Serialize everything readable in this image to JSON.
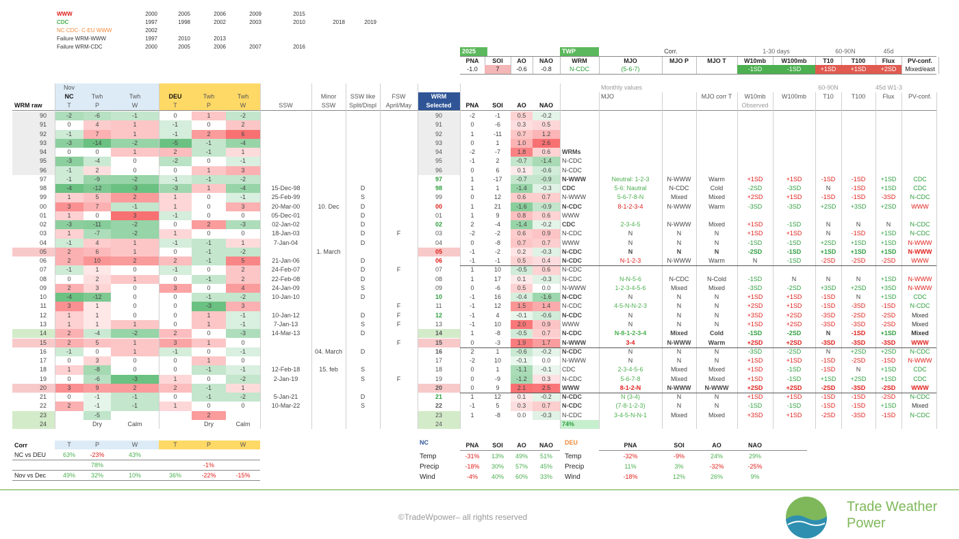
{
  "legend": {
    "rows": [
      {
        "label": "WWW",
        "years": [
          "2000",
          "2005",
          "2006",
          "2009",
          "2015"
        ]
      },
      {
        "label": "CDC",
        "years": [
          "1997",
          "1998",
          "2002",
          "2003",
          "2010",
          "2018",
          "2019"
        ]
      },
      {
        "label": "NC CDC- C-EU WWW",
        "years": [
          "2002"
        ]
      },
      {
        "label": "Failure WRM-WWW",
        "years": [
          "1997",
          "2010",
          "2013"
        ]
      },
      {
        "label": "Failure WRM-CDC",
        "years": [
          "2000",
          "2005",
          "2006",
          "2007",
          "2016"
        ]
      }
    ]
  },
  "forecast": {
    "year": "2025",
    "twp": "TWP",
    "corr": "Corr.",
    "days": "1-30 days",
    "band": "60-90N",
    "flux": "45d",
    "headers": [
      "PNA",
      "SOI",
      "AO",
      "NAO",
      "WRM",
      "MJO",
      "MJO P",
      "MJO T",
      "W10mb",
      "W100mb",
      "T10",
      "T100",
      "Flux",
      "PV-conf."
    ],
    "values": [
      "-1.0",
      "7",
      "-0.6",
      "-0.8",
      "N-CDC",
      "(5-6-7)",
      null,
      null,
      "-1SD",
      "-1SD",
      "+1SD",
      "+1SD",
      "+2SD",
      "Mixed/east"
    ]
  },
  "main": {
    "headers": [
      [
        null,
        "Nov",
        null,
        null,
        null,
        null,
        null,
        null,
        null,
        null,
        null,
        null,
        null,
        null,
        null,
        null,
        null,
        "Monthly values",
        null,
        null,
        null,
        null,
        "60-90N",
        null,
        "45d W1-3",
        null
      ],
      [
        null,
        "NC",
        "Twh",
        "Twh",
        "DEU",
        "Twh",
        "Twh",
        null,
        "Minor",
        "SSW like",
        "FSW",
        "WRM",
        null,
        null,
        null,
        null,
        null,
        "MJO",
        null,
        "MJO corr T",
        "W10mb",
        "W100mb",
        "T10",
        "T100",
        "Flux",
        "PV-conf."
      ],
      [
        "WRM raw",
        "T",
        "P",
        "W",
        "T",
        "P",
        "W",
        "SSW",
        "SSW",
        "Split/Displ",
        "April/May",
        "Selected",
        "PNA",
        "SOI",
        "AO",
        "NAO",
        null,
        null,
        null,
        null,
        "Observed",
        null,
        null,
        null,
        null,
        null
      ]
    ],
    "rows": [
      [
        "90",
        "-2",
        "-6",
        "-1",
        "0",
        "1",
        "-2",
        null,
        null,
        null,
        null,
        "90",
        "-2",
        "-1",
        "0.5",
        "-0.2",
        null,
        null,
        null,
        null,
        null,
        null,
        null,
        null,
        null,
        null
      ],
      [
        "91",
        "0",
        "4",
        "1",
        "-1",
        "0",
        "2",
        null,
        null,
        null,
        null,
        "91",
        "0",
        "-6",
        "0.3",
        "0.5",
        null,
        null,
        null,
        null,
        null,
        null,
        null,
        null,
        null,
        null
      ],
      [
        "92",
        "-1",
        "7",
        "1",
        "-1",
        "2",
        "6",
        null,
        null,
        null,
        null,
        "92",
        "1",
        "-11",
        "0.7",
        "1.2",
        null,
        null,
        null,
        null,
        null,
        null,
        null,
        null,
        null,
        null
      ],
      [
        "93",
        "-3",
        "-14",
        "-2",
        "-5",
        "-1",
        "-4",
        null,
        null,
        null,
        null,
        "93",
        "0",
        "1",
        "1.0",
        "2.6",
        null,
        null,
        null,
        null,
        null,
        null,
        null,
        null,
        null,
        null
      ],
      [
        "94",
        "0",
        "0",
        "1",
        "2",
        "-1",
        "1",
        null,
        null,
        null,
        null,
        "94",
        "-2",
        "-7",
        "1.8",
        "0.6",
        "WRMs",
        null,
        null,
        null,
        null,
        null,
        null,
        null,
        null,
        null
      ],
      [
        "95",
        "-3",
        "-4",
        "0",
        "-2",
        "0",
        "-1",
        null,
        null,
        null,
        null,
        "95",
        "-1",
        "2",
        "-0.7",
        "-1.4",
        "N-CDC",
        null,
        null,
        null,
        null,
        null,
        null,
        null,
        null,
        null
      ],
      [
        "96",
        "-1",
        "2",
        "0",
        "0",
        "1",
        "3",
        null,
        null,
        null,
        null,
        "96",
        "0",
        "6",
        "0.1",
        "-0.6",
        "N-CDC",
        null,
        null,
        null,
        null,
        null,
        null,
        null,
        null,
        null
      ],
      [
        "97",
        "-1",
        "-9",
        "-2",
        "-1",
        "-1",
        "-2",
        null,
        null,
        null,
        null,
        "97",
        "1",
        "-17",
        "-0.7",
        "-0.9",
        "N-WWW",
        "Neutral: 1-2-3",
        "N-WWW",
        "Warm",
        "+1SD",
        "+1SD",
        "-1SD",
        "-1SD",
        "+1SD",
        "CDC"
      ],
      [
        "98",
        "-4",
        "-12",
        "-3",
        "-3",
        "1",
        "-4",
        "15-Dec-98",
        null,
        "D",
        null,
        "98",
        "1",
        "1",
        "-1.4",
        "-0.3",
        "CDC",
        "5-6: Nautral",
        "N-CDC",
        "Cold",
        "-2SD",
        "-3SD",
        "N",
        "-1SD",
        "+1SD",
        "CDC"
      ],
      [
        "99",
        "1",
        "5",
        "2",
        "1",
        "0",
        "-1",
        "25-Feb-99",
        null,
        "S",
        null,
        "99",
        "0",
        "12",
        "0.6",
        "0.7",
        "N-WWW",
        "5-6-7-8-N",
        "Mixed",
        "Mixed",
        "+2SD",
        "+1SD",
        "-1SD",
        "-1SD",
        "-3SD",
        "N-CDC"
      ],
      [
        "00",
        "3",
        "7",
        "-1",
        "1",
        "0",
        "3",
        "20-Mar-00",
        "10. Dec",
        "D",
        null,
        "00",
        "1",
        "21",
        "-1.6",
        "-0.9",
        "N-CDC",
        "8-1-2-3-4",
        "N-WWW",
        "Warm",
        "-3SD",
        "-3SD",
        "+2SD",
        "+3SD",
        "+2SD",
        "WWW"
      ],
      [
        "01",
        "1",
        "0",
        "3",
        "-1",
        "0",
        "0",
        "05-Dec-01",
        null,
        "D",
        null,
        "01",
        "1",
        "9",
        "0.8",
        "0.6",
        "WWW",
        null,
        null,
        null,
        null,
        null,
        null,
        null,
        null,
        null
      ],
      [
        "02",
        "-3",
        "-11",
        "-2",
        "0",
        "2",
        "-3",
        "02-Jan-02",
        null,
        "D",
        null,
        "02",
        "2",
        "-4",
        "-1.4",
        "-0.2",
        "CDC",
        "2-3-4-5",
        "N-WWW",
        "Mixed",
        "+1SD",
        "-1SD",
        "N",
        "N",
        "N",
        "N-CDC"
      ],
      [
        "03",
        "1",
        "-7",
        "-2",
        "1",
        "0",
        "0",
        "18-Jan-03",
        null,
        "D",
        "F",
        "03",
        "-2",
        "-2",
        "0.6",
        "0.9",
        "N-CDC",
        "N",
        "N",
        "N",
        "+1SD",
        "+1SD",
        "N",
        "-1SD",
        "+1SD",
        "N-CDC"
      ],
      [
        "04",
        "-1",
        "4",
        "1",
        "-1",
        "-1",
        "1",
        "7-Jan-04",
        null,
        "D",
        null,
        "04",
        "0",
        "-8",
        "0.7",
        "0.7",
        "WWW",
        "N",
        "N",
        "N",
        "-1SD",
        "-1SD",
        "+2SD",
        "+1SD",
        "+1SD",
        "N-WWW"
      ],
      [
        "05",
        "2",
        "6",
        "1",
        "0",
        "-1",
        "-2",
        null,
        "1. March",
        null,
        null,
        "05",
        "-1",
        "-2",
        "0.2",
        "-0.3",
        "N-CDC",
        "N",
        "N",
        "N",
        "-2SD",
        "-1SD",
        "+1SD",
        "+1SD",
        "+1SD",
        "N-WWW"
      ],
      [
        "06",
        "2",
        "10",
        "2",
        "2",
        "-1",
        "5",
        "21-Jan-06",
        null,
        "D",
        null,
        "06",
        "-1",
        "-1",
        "0.5",
        "0.4",
        "N-CDC",
        "N-1-2-3",
        "N-WWW",
        "Warm",
        "N",
        "-1SD",
        "-2SD",
        "-2SD",
        "-2SD",
        "WWW"
      ],
      [
        "07",
        "-1",
        "1",
        "0",
        "-1",
        "0",
        "2",
        "24-Feb-07",
        null,
        "D",
        "F",
        "07",
        "1",
        "10",
        "-0.5",
        "0.6",
        "N-CDC",
        null,
        null,
        null,
        null,
        null,
        null,
        null,
        null,
        null
      ],
      [
        "08",
        "0",
        "2",
        "1",
        "0",
        "-1",
        "2",
        "22-Feb-08",
        null,
        "D",
        null,
        "08",
        "1",
        "17",
        "0.1",
        "-0.3",
        "N-CDC",
        "N-N-5-6",
        "N-CDC",
        "N-Cold",
        "-1SD",
        "N",
        "N",
        "N",
        "+1SD",
        "N-WWW"
      ],
      [
        "09",
        "2",
        "3",
        "0",
        "3",
        "0",
        "4",
        "24-Jan-09",
        null,
        "S",
        null,
        "09",
        "0",
        "-6",
        "0.5",
        "0.0",
        "N-WWW",
        "1-2-3-4-5-6",
        "Mixed",
        "Mixed",
        "-3SD",
        "-2SD",
        "+3SD",
        "+2SD",
        "+3SD",
        "N-WWW"
      ],
      [
        "10",
        "-4",
        "-12",
        "0",
        "0",
        "-1",
        "-2",
        "10-Jan-10",
        null,
        "D",
        null,
        "10",
        "-1",
        "16",
        "-0.4",
        "-1.6",
        "N-CDC",
        "N",
        "N",
        "N",
        "+1SD",
        "+1SD",
        "-1SD",
        "N",
        "+1SD",
        "CDC"
      ],
      [
        "11",
        "3",
        "1",
        "0",
        "0",
        "-3",
        "3",
        null,
        null,
        null,
        "F",
        "11",
        "-1",
        "12",
        "1.5",
        "1.4",
        "N-CDC",
        "4-5-N-N-2-3",
        "N",
        "N",
        "+2SD",
        "+1SD",
        "-1SD",
        "-3SD",
        "-1SD",
        "N-CDC"
      ],
      [
        "12",
        "1",
        "1",
        "0",
        "0",
        "1",
        "-1",
        "10-Jan-12",
        null,
        "D",
        "F",
        "12",
        "-1",
        "4",
        "-0.1",
        "-0.6",
        "N-CDC",
        "N",
        "N",
        "N",
        "+3SD",
        "+2SD",
        "-3SD",
        "-2SD",
        "-2SD",
        "Mixed"
      ],
      [
        "13",
        "1",
        "1",
        "1",
        "0",
        "1",
        "-1",
        "7-Jan-13",
        null,
        "S",
        "F",
        "13",
        "-1",
        "10",
        "2.0",
        "0.9",
        "WWW",
        "N",
        "N",
        "N",
        "+1SD",
        "+2SD",
        "-3SD",
        "-3SD",
        "-2SD",
        "Mixed"
      ],
      [
        "14",
        "2",
        "-4",
        "-2",
        "2",
        "0",
        "-3",
        "14-Mar-13",
        null,
        "D",
        null,
        "14",
        "1",
        "-8",
        "-0.5",
        "0.7",
        "N-CDC",
        "N-8-1-2-3-4",
        "Mixed",
        "Cold",
        "-1SD",
        "-2SD",
        "N",
        "-1SD",
        "+1SD",
        "Mixed"
      ],
      [
        "15",
        "2",
        "5",
        "1",
        "3",
        "1",
        "0",
        null,
        null,
        null,
        "F",
        "15",
        "0",
        "-3",
        "1.9",
        "1.7",
        "N-WWW",
        "3-4",
        "N-WWW",
        "Warm",
        "+2SD",
        "+2SD",
        "-3SD",
        "-3SD",
        "-3SD",
        "WWW"
      ],
      [
        "16",
        "-1",
        "0",
        "1",
        "-1",
        "0",
        "-1",
        null,
        "04. March",
        "D",
        null,
        "16",
        "2",
        "1",
        "-0.6",
        "-0.2",
        "N-CDC",
        "N",
        "N",
        "N",
        "-3SD",
        "-2SD",
        "N",
        "+2SD",
        "+2SD",
        "N-CDC"
      ],
      [
        "17",
        "0",
        "3",
        "0",
        "0",
        "1",
        "0",
        null,
        null,
        null,
        null,
        "17",
        "-2",
        "10",
        "-0.1",
        "0.0",
        "N-WWW",
        "N",
        "N",
        "N",
        "+1SD",
        "+1SD",
        "-1SD",
        "-2SD",
        "-1SD",
        "N-WWW"
      ],
      [
        "18",
        "1",
        "-8",
        "0",
        "0",
        "-1",
        "-1",
        "12-Feb-18",
        "15. feb",
        "S",
        null,
        "18",
        "0",
        "1",
        "-1.1",
        "-0.1",
        "CDC",
        "2-3-4-5-6",
        "Mixed",
        "Mixed",
        "+1SD",
        "-1SD",
        "-1SD",
        "N",
        "+1SD",
        "CDC"
      ],
      [
        "19",
        "0",
        "-6",
        "-3",
        "1",
        "0",
        "-2",
        "2-Jan-19",
        null,
        "S",
        "F",
        "19",
        "0",
        "-9",
        "-1.2",
        "0.3",
        "N-CDC",
        "5-6-7-8",
        "Mixed",
        "Mixed",
        "+1SD",
        "-1SD",
        "+1SD",
        "+2SD",
        "+1SD",
        "CDC"
      ],
      [
        "20",
        "3",
        "9",
        "2",
        "2",
        "-1",
        "1",
        null,
        null,
        null,
        null,
        "20",
        "0",
        "9",
        "2.1",
        "2.5",
        "WWW",
        "8-1-2-N",
        "N-WWW",
        "N-WWW",
        "+2SD",
        "+2SD",
        "-2SD",
        "-3SD",
        "-2SD",
        "WWW"
      ],
      [
        "21",
        "0",
        "-1",
        "-1",
        "0",
        "-1",
        "-2",
        "5-Jan-21",
        null,
        "D",
        null,
        "21",
        "1",
        "12",
        "0.1",
        "-0.2",
        "N-CDC",
        "N (3-4)",
        "N",
        "N",
        "+1SD",
        "+1SD",
        "-1SD",
        "-1SD",
        "-2SD",
        "N-CDC"
      ],
      [
        "22",
        "2",
        "-1",
        "-1",
        "1",
        "0",
        "0",
        "10-Mar-22",
        null,
        "S",
        null,
        "22",
        "-1",
        "5",
        "0.3",
        "0.7",
        "N-CDC",
        "(7-8-1-2-3)",
        "N",
        "N",
        "-1SD",
        "-1SD",
        "-1SD",
        "-1SD",
        "+1SD",
        "Mixed"
      ],
      [
        "23",
        null,
        "-5",
        null,
        null,
        "2",
        null,
        null,
        null,
        null,
        null,
        "23",
        "1",
        "-8",
        "0.0",
        "-0.3",
        "N-CDC",
        "3-4-5-N-N-1",
        "Mixed",
        "Mixed",
        "+3SD",
        "+1SD",
        "-2SD",
        "-3SD",
        "-1SD",
        "N-CDC"
      ],
      [
        "24",
        null,
        "Dry",
        "Calm",
        null,
        "Dry",
        "Calm",
        null,
        null,
        null,
        null,
        "24",
        null,
        null,
        null,
        null,
        "74%",
        null,
        null,
        null,
        null,
        null,
        null,
        null,
        null,
        null
      ]
    ]
  },
  "corr": {
    "title": "Corr",
    "headers": [
      "T",
      "P",
      "W",
      "T",
      "P",
      "W"
    ],
    "rows": [
      {
        "label": "NC vs DEU",
        "values": [
          "63%",
          "-23%",
          "43%",
          null,
          null,
          null
        ]
      },
      {
        "label": null,
        "values": [
          null,
          "78%",
          null,
          null,
          "-1%",
          null
        ]
      },
      {
        "label": "Nov vs Dec",
        "values": [
          "49%",
          "32%",
          "10%",
          "36%",
          "-22%",
          "-15%"
        ]
      }
    ]
  },
  "indices": {
    "headers": [
      "PNA",
      "SOI",
      "AO",
      "NAO"
    ],
    "groups": [
      {
        "name": "NC",
        "rows": [
          {
            "label": "Temp",
            "values": [
              "-31%",
              "13%",
              "49%",
              "51%"
            ]
          },
          {
            "label": "Precip",
            "values": [
              "-18%",
              "30%",
              "57%",
              "45%"
            ]
          },
          {
            "label": "Wind",
            "values": [
              "-4%",
              "40%",
              "60%",
              "33%"
            ]
          }
        ]
      },
      {
        "name": "DEU",
        "rows": [
          {
            "label": "Temp",
            "values": [
              "-32%",
              "-9%",
              "24%",
              "29%"
            ]
          },
          {
            "label": "Precip",
            "values": [
              "11%",
              "3%",
              "-32%",
              "-25%"
            ]
          },
          {
            "label": "Wind",
            "values": [
              "-18%",
              "12%",
              "26%",
              "9%"
            ]
          }
        ]
      }
    ]
  },
  "footer": {
    "copyright": "©TradeWpower– all rights reserved",
    "brand": [
      "Trade Weather",
      "Power"
    ]
  }
}
